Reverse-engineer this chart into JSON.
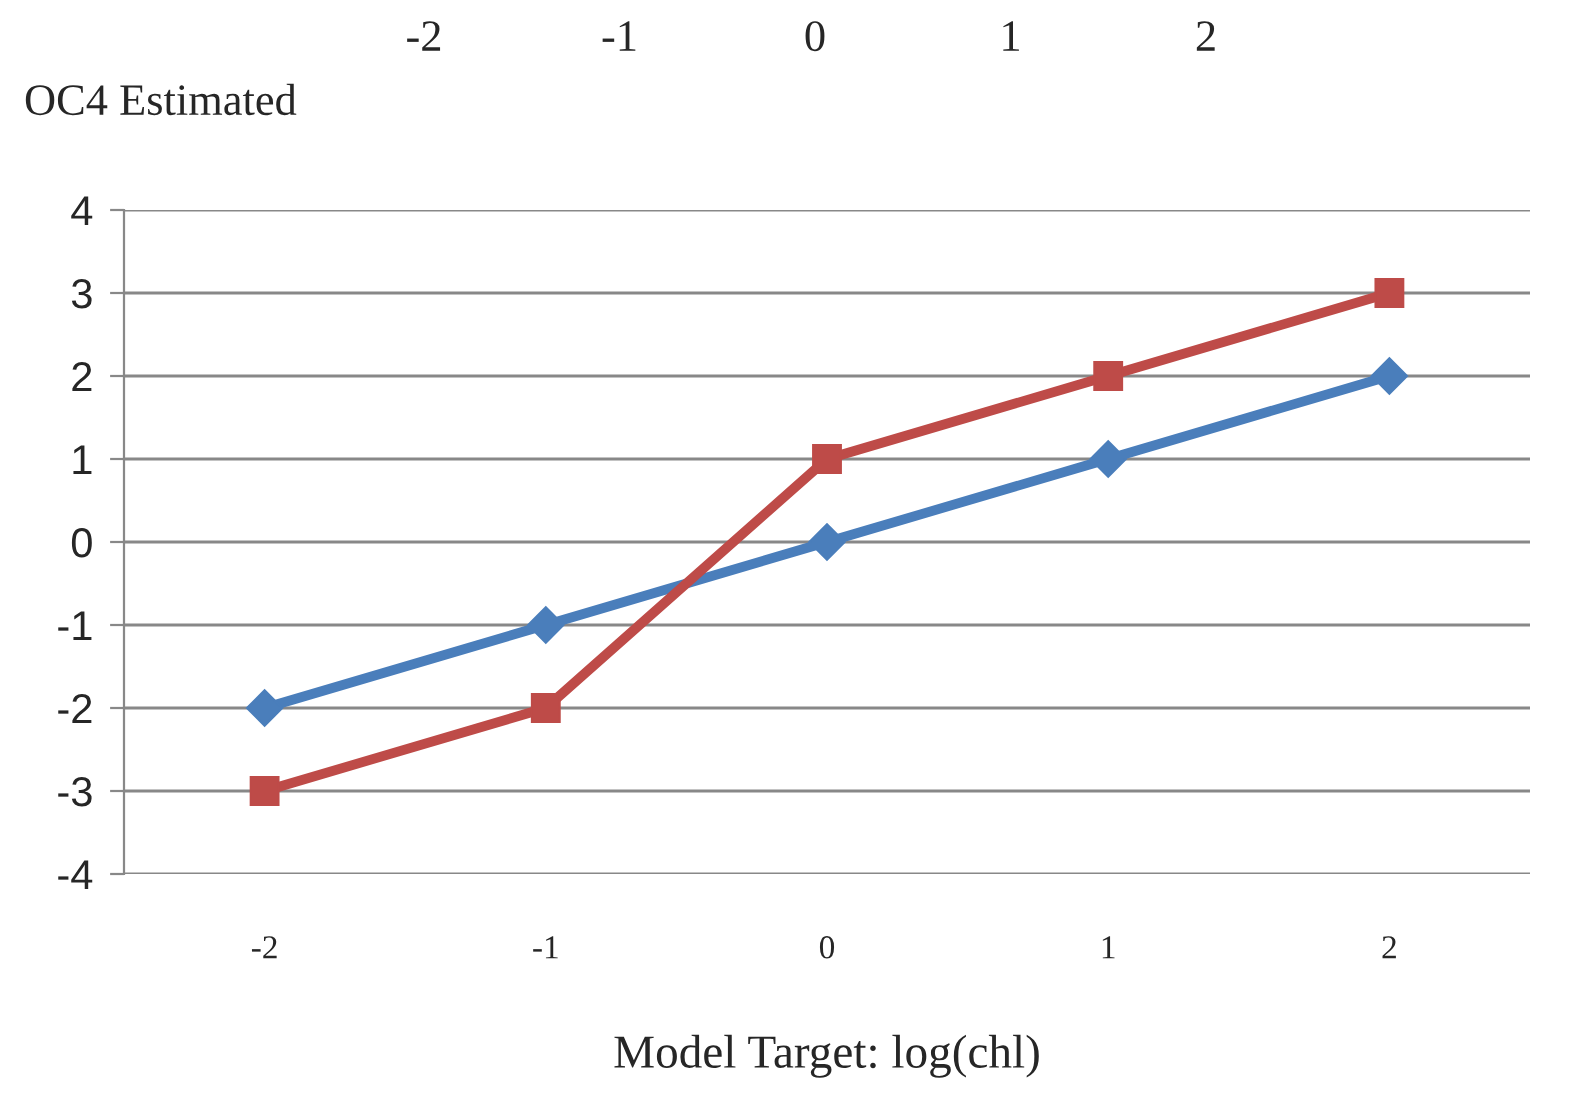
{
  "chart_data": {
    "type": "line",
    "xlabel": "Model Target: log(chl)",
    "ylabel": "OC4 Estimated",
    "categories": [
      "-2",
      "-1",
      "0",
      "1",
      "2"
    ],
    "series": [
      {
        "color": "#4a7ebb",
        "values": [
          -2,
          -1,
          0,
          1,
          2
        ],
        "marker": "diamond"
      },
      {
        "color": "#be4b48",
        "values": [
          -3,
          -2,
          1,
          2,
          3
        ],
        "marker": "square"
      }
    ],
    "ylim": [
      -4,
      4
    ],
    "yticks": [
      -4,
      -3,
      -2,
      -1,
      0,
      1,
      2,
      3,
      4
    ],
    "grid": "y",
    "annotations": [
      "-2",
      "-1",
      "0",
      "1",
      "2"
    ]
  }
}
